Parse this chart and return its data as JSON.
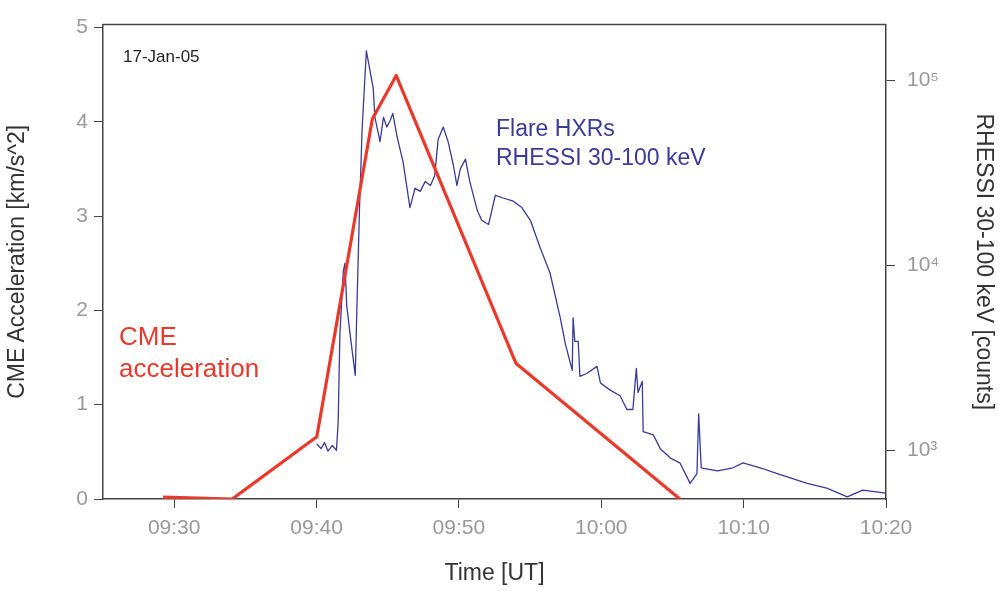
{
  "chart_data": {
    "type": "line",
    "xlabel": "Time [UT]",
    "ylabel": "CME Acceleration [km/s^2]",
    "y2label": "RHESSI 30-100 keV [counts]",
    "annotations": [
      "17-Jan-05"
    ],
    "xlim": [
      9.4167,
      10.3333
    ],
    "xticks": [
      {
        "value": 9.5,
        "label": "09:30"
      },
      {
        "value": 9.6667,
        "label": "09:40"
      },
      {
        "value": 9.8333,
        "label": "09:50"
      },
      {
        "value": 10.0,
        "label": "10:00"
      },
      {
        "value": 10.1667,
        "label": "10:10"
      },
      {
        "value": 10.3333,
        "label": "10:20"
      }
    ],
    "ylim": [
      0,
      5.03
    ],
    "yticks": [
      0,
      1,
      2,
      3,
      4,
      5
    ],
    "y2lim": [
      545,
      200000
    ],
    "y2ticks": [
      {
        "value": 1000,
        "label": "10³"
      },
      {
        "value": 10000,
        "label": "10⁴"
      },
      {
        "value": 100000,
        "label": "10⁵"
      }
    ],
    "log": "y2",
    "grid": false,
    "legend": false,
    "marker": "none",
    "line_style": "solid",
    "series": [
      {
        "name": "CME acceleration",
        "type": "line",
        "color": "#e8392b",
        "x": [
          9.487,
          9.568,
          9.667,
          9.732,
          9.76,
          9.9,
          10.092
        ],
        "values": [
          0.02,
          0,
          0.66,
          4.03,
          4.49,
          1.44,
          0
        ]
      },
      {
        "name": "Flare HXRs\nRHESSI 30-100 keV",
        "type": "line",
        "axis": "y2",
        "color": "#3a3a9a",
        "x": [
          9.667,
          9.672,
          9.676,
          9.68,
          9.685,
          9.69,
          9.692,
          9.694,
          9.698,
          9.7,
          9.702,
          9.706,
          9.712,
          9.714,
          9.717,
          9.72,
          9.725,
          9.733,
          9.735,
          9.741,
          9.745,
          9.749,
          9.753,
          9.756,
          9.761,
          9.768,
          9.776,
          9.782,
          9.788,
          9.794,
          9.8,
          9.805,
          9.809,
          9.815,
          9.821,
          9.827,
          9.831,
          9.835,
          9.841,
          9.846,
          9.855,
          9.86,
          9.868,
          9.876,
          9.885,
          9.897,
          9.907,
          9.917,
          9.928,
          9.94,
          9.952,
          9.958,
          9.966,
          9.967,
          9.969,
          9.973,
          9.975,
          9.983,
          9.995,
          9.999,
          10.01,
          10.022,
          10.03,
          10.037,
          10.041,
          10.043,
          10.048,
          10.049,
          10.061,
          10.069,
          10.081,
          10.092,
          10.104,
          10.112,
          10.114,
          10.117,
          10.136,
          10.154,
          10.166,
          10.186,
          10.206,
          10.224,
          10.241,
          10.264,
          10.288,
          10.306,
          10.333
        ],
        "values": [
          1080,
          1020,
          1100,
          990,
          1060,
          1000,
          1420,
          4230,
          9300,
          10250,
          6080,
          4230,
          2540,
          6080,
          20500,
          54000,
          144000,
          90800,
          63100,
          46600,
          63100,
          55900,
          60800,
          66200,
          49500,
          36100,
          20500,
          26100,
          25100,
          28400,
          27000,
          30500,
          47800,
          55900,
          46000,
          34400,
          27000,
          33200,
          37500,
          28400,
          19700,
          17500,
          16600,
          23900,
          23100,
          22200,
          20500,
          17500,
          12600,
          9080,
          5200,
          3750,
          2700,
          5200,
          3880,
          3880,
          2510,
          2600,
          2840,
          2310,
          2120,
          1970,
          1660,
          1660,
          2770,
          2050,
          2360,
          1260,
          1210,
          1020,
          907,
          855,
          662,
          748,
          1570,
          804,
          774,
          804,
          855,
          804,
          748,
          703,
          662,
          624,
          559,
          608,
          586
        ]
      }
    ]
  }
}
